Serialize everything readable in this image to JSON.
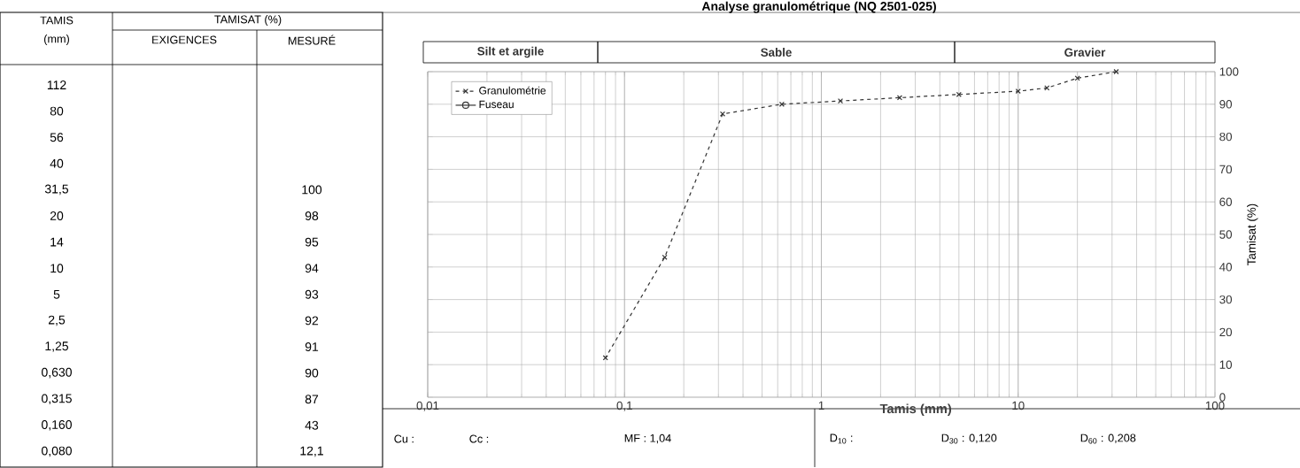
{
  "chart_data": {
    "type": "line",
    "title": "Analyse granulométrique (NQ 2501-025)",
    "xlabel": "Tamis (mm)",
    "ylabel": "Tamisat (%)",
    "x": [
      31.5,
      20,
      14,
      10,
      5,
      2.5,
      1.25,
      0.63,
      0.315,
      0.16,
      0.08
    ],
    "series": [
      {
        "name": "Granulométrie",
        "color": "#333333",
        "marker": "cross",
        "line_style": "dashed",
        "values": [
          100,
          98,
          95,
          94,
          93,
          92,
          91,
          90,
          87,
          43,
          12.1
        ]
      },
      {
        "name": "Fuseau",
        "color": "#333333",
        "marker": "circle",
        "line_style": "solid",
        "values": [
          null,
          null,
          null,
          null,
          null,
          null,
          null,
          null,
          null,
          null,
          null
        ]
      }
    ],
    "log": "x",
    "xlim": [
      0.01,
      100
    ],
    "ylim": [
      0,
      100
    ],
    "xticks": [
      {
        "value": 0.01,
        "label": "0,01"
      },
      {
        "value": 0.1,
        "label": "0,1"
      },
      1,
      10,
      100
    ],
    "yticks": [
      0,
      10,
      20,
      30,
      40,
      50,
      60,
      70,
      80,
      90,
      100
    ],
    "grid": true,
    "legend": "top left",
    "annotations": [
      "TAMIS",
      "(mm)",
      "TAMISAT (%)",
      "EXIGENCES",
      "MESURÉ",
      "112",
      "80",
      "56",
      "40",
      "31,5",
      "20",
      "14",
      "10",
      "5",
      "2,5",
      "1,25",
      "0,630",
      "0,315",
      "0,160",
      "0,080",
      "100",
      "98",
      "95",
      "94",
      "93",
      "92",
      "91",
      "90",
      "87",
      "43",
      "12,1",
      "Cu :",
      "Cc :",
      "MF : 1,04",
      "D$_{10}$ :",
      "D$_{30}$ : 0,120",
      "D$_{60}$ : 0,208",
      "Silt et argile",
      "Sable",
      "Gravier"
    ]
  }
}
